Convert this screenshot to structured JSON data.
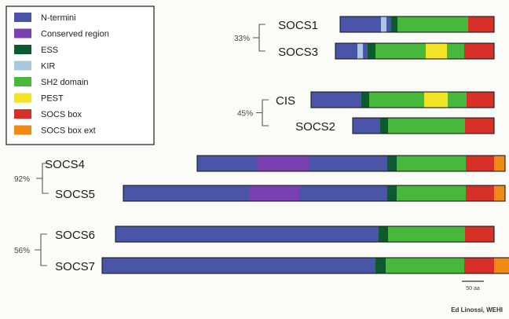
{
  "legend": {
    "items": [
      {
        "label": "N-termini",
        "color": "#4a55a8"
      },
      {
        "label": "Conserved region",
        "color": "#7a3fb0"
      },
      {
        "label": "ESS",
        "color": "#0c5a2e"
      },
      {
        "label": "KIR",
        "color": "#a8c8e0"
      },
      {
        "label": "SH2 domain",
        "color": "#48b83c"
      },
      {
        "label": "PEST",
        "color": "#f2e424"
      },
      {
        "label": "SOCS box",
        "color": "#d63028"
      },
      {
        "label": "SOCS box ext",
        "color": "#ef8a14"
      }
    ]
  },
  "groups": [
    {
      "percent": "33%",
      "members": [
        "SOCS1",
        "SOCS3"
      ]
    },
    {
      "percent": "45%",
      "members": [
        "CIS",
        "SOCS2"
      ]
    },
    {
      "percent": "92%",
      "members": [
        "SOCS4",
        "SOCS5"
      ]
    },
    {
      "percent": "56%",
      "members": [
        "SOCS6",
        "SOCS7"
      ]
    }
  ],
  "proteins": [
    {
      "name": "SOCS1",
      "segments": [
        {
          "type": "N-termini",
          "length": 52
        },
        {
          "type": "KIR",
          "length": 7
        },
        {
          "type": "N-termini",
          "length": 6
        },
        {
          "type": "ESS",
          "length": 8
        },
        {
          "type": "SH2 domain",
          "length": 90
        },
        {
          "type": "SOCS box",
          "length": 33
        }
      ]
    },
    {
      "name": "SOCS3",
      "segments": [
        {
          "type": "N-termini",
          "length": 28
        },
        {
          "type": "KIR",
          "length": 7
        },
        {
          "type": "N-termini",
          "length": 6
        },
        {
          "type": "ESS",
          "length": 10
        },
        {
          "type": "SH2 domain",
          "length": 64
        },
        {
          "type": "PEST",
          "length": 27
        },
        {
          "type": "SH2 domain",
          "length": 22
        },
        {
          "type": "SOCS box",
          "length": 38
        }
      ]
    },
    {
      "name": "CIS",
      "segments": [
        {
          "type": "N-termini",
          "length": 64
        },
        {
          "type": "ESS",
          "length": 10
        },
        {
          "type": "SH2 domain",
          "length": 70
        },
        {
          "type": "PEST",
          "length": 30
        },
        {
          "type": "SH2 domain",
          "length": 24
        },
        {
          "type": "SOCS box",
          "length": 35
        }
      ]
    },
    {
      "name": "SOCS2",
      "segments": [
        {
          "type": "N-termini",
          "length": 35
        },
        {
          "type": "ESS",
          "length": 10
        },
        {
          "type": "SH2 domain",
          "length": 98
        },
        {
          "type": "SOCS box",
          "length": 37
        }
      ]
    },
    {
      "name": "SOCS4",
      "segments": [
        {
          "type": "N-termini",
          "length": 76
        },
        {
          "type": "Conserved region",
          "length": 66
        },
        {
          "type": "N-termini",
          "length": 100
        },
        {
          "type": "ESS",
          "length": 12
        },
        {
          "type": "SH2 domain",
          "length": 88
        },
        {
          "type": "SOCS box",
          "length": 36
        },
        {
          "type": "SOCS box ext",
          "length": 14
        }
      ]
    },
    {
      "name": "SOCS5",
      "segments": [
        {
          "type": "N-termini",
          "length": 160
        },
        {
          "type": "Conserved region",
          "length": 64
        },
        {
          "type": "N-termini",
          "length": 112
        },
        {
          "type": "ESS",
          "length": 12
        },
        {
          "type": "SH2 domain",
          "length": 88
        },
        {
          "type": "SOCS box",
          "length": 36
        },
        {
          "type": "SOCS box ext",
          "length": 14
        }
      ]
    },
    {
      "name": "SOCS6",
      "segments": [
        {
          "type": "N-termini",
          "length": 335
        },
        {
          "type": "ESS",
          "length": 12
        },
        {
          "type": "SH2 domain",
          "length": 98
        },
        {
          "type": "SOCS box",
          "length": 37
        }
      ]
    },
    {
      "name": "SOCS7",
      "segments": [
        {
          "type": "N-termini",
          "length": 348
        },
        {
          "type": "ESS",
          "length": 13
        },
        {
          "type": "SH2 domain",
          "length": 100
        },
        {
          "type": "SOCS box",
          "length": 38
        },
        {
          "type": "SOCS box ext",
          "length": 22
        }
      ]
    }
  ],
  "scale_bar": {
    "label": "50 aa",
    "length": 28
  },
  "credit": "Ed Linossi, WEHI"
}
